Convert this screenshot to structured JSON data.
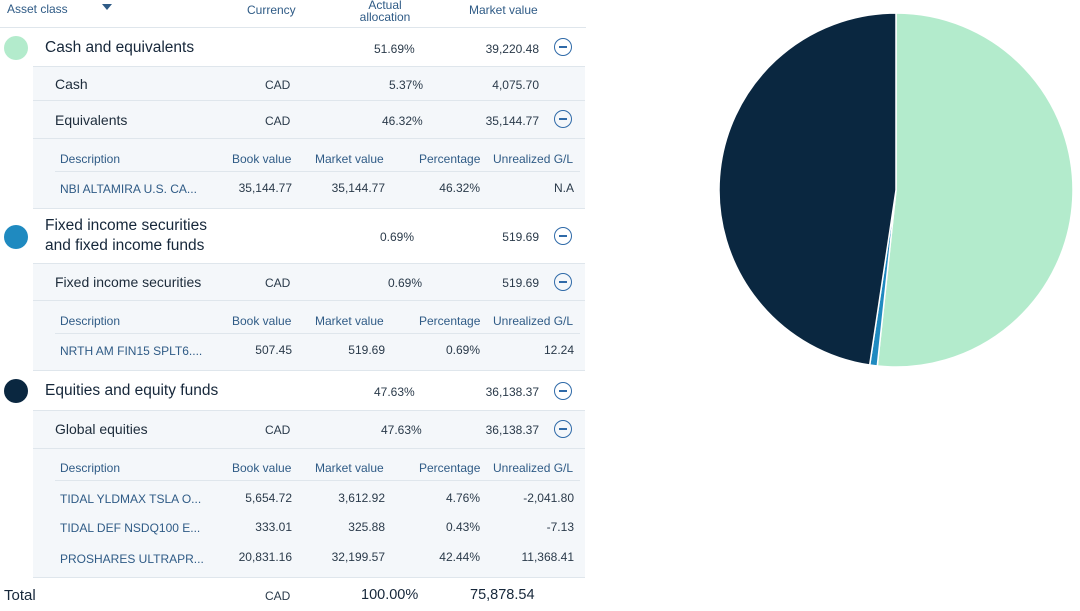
{
  "header": {
    "asset_class": "Asset class",
    "currency": "Currency",
    "actual_allocation_line1": "Actual",
    "actual_allocation_line2": "allocation",
    "market_value": "Market value"
  },
  "detail_headers": {
    "description": "Description",
    "book_value": "Book value",
    "market_value": "Market value",
    "percentage": "Percentage",
    "unrealized": "Unrealized G/L"
  },
  "colors": {
    "cash": "#b3ebcc",
    "fixed": "#1f8ac0",
    "equities": "#0a2740"
  },
  "groups": {
    "cash": {
      "name": "Cash and equivalents",
      "allocation": "51.69%",
      "market_value": "39,220.48",
      "sub1": {
        "name": "Cash",
        "currency": "CAD",
        "allocation": "5.37%",
        "market_value": "4,075.70"
      },
      "sub2": {
        "name": "Equivalents",
        "currency": "CAD",
        "allocation": "46.32%",
        "market_value": "35,144.77"
      },
      "holding1": {
        "description": "NBI ALTAMIRA U.S. CA...",
        "book_value": "35,144.77",
        "market_value": "35,144.77",
        "percentage": "46.32%",
        "unrealized": "N.A"
      }
    },
    "fixed": {
      "name_line1": "Fixed income securities",
      "name_line2": "and fixed income funds",
      "allocation": "0.69%",
      "market_value": "519.69",
      "sub1": {
        "name": "Fixed income securities",
        "currency": "CAD",
        "allocation": "0.69%",
        "market_value": "519.69"
      },
      "holding1": {
        "description": "NRTH AM FIN15 SPLT6....",
        "book_value": "507.45",
        "market_value": "519.69",
        "percentage": "0.69%",
        "unrealized": "12.24"
      }
    },
    "equities": {
      "name": "Equities and equity funds",
      "allocation": "47.63%",
      "market_value": "36,138.37",
      "sub1": {
        "name": "Global equities",
        "currency": "CAD",
        "allocation": "47.63%",
        "market_value": "36,138.37"
      },
      "holding1": {
        "description": "TIDAL YLDMAX TSLA O...",
        "book_value": "5,654.72",
        "market_value": "3,612.92",
        "percentage": "4.76%",
        "unrealized": "-2,041.80"
      },
      "holding2": {
        "description": "TIDAL DEF NSDQ100 E...",
        "book_value": "333.01",
        "market_value": "325.88",
        "percentage": "0.43%",
        "unrealized": "-7.13"
      },
      "holding3": {
        "description": "PROSHARES ULTRAPR...",
        "book_value": "20,831.16",
        "market_value": "32,199.57",
        "percentage": "42.44%",
        "unrealized": "11,368.41"
      }
    }
  },
  "total": {
    "label": "Total",
    "currency": "CAD",
    "allocation": "100.00%",
    "market_value": "75,878.54"
  },
  "chart_data": {
    "type": "pie",
    "title": "",
    "slices": [
      {
        "label": "Cash and equivalents",
        "value": 51.69,
        "color": "#b3ebcc"
      },
      {
        "label": "Fixed income securities and fixed income funds",
        "value": 0.69,
        "color": "#1f8ac0"
      },
      {
        "label": "Equities and equity funds",
        "value": 47.63,
        "color": "#0a2740"
      }
    ]
  }
}
